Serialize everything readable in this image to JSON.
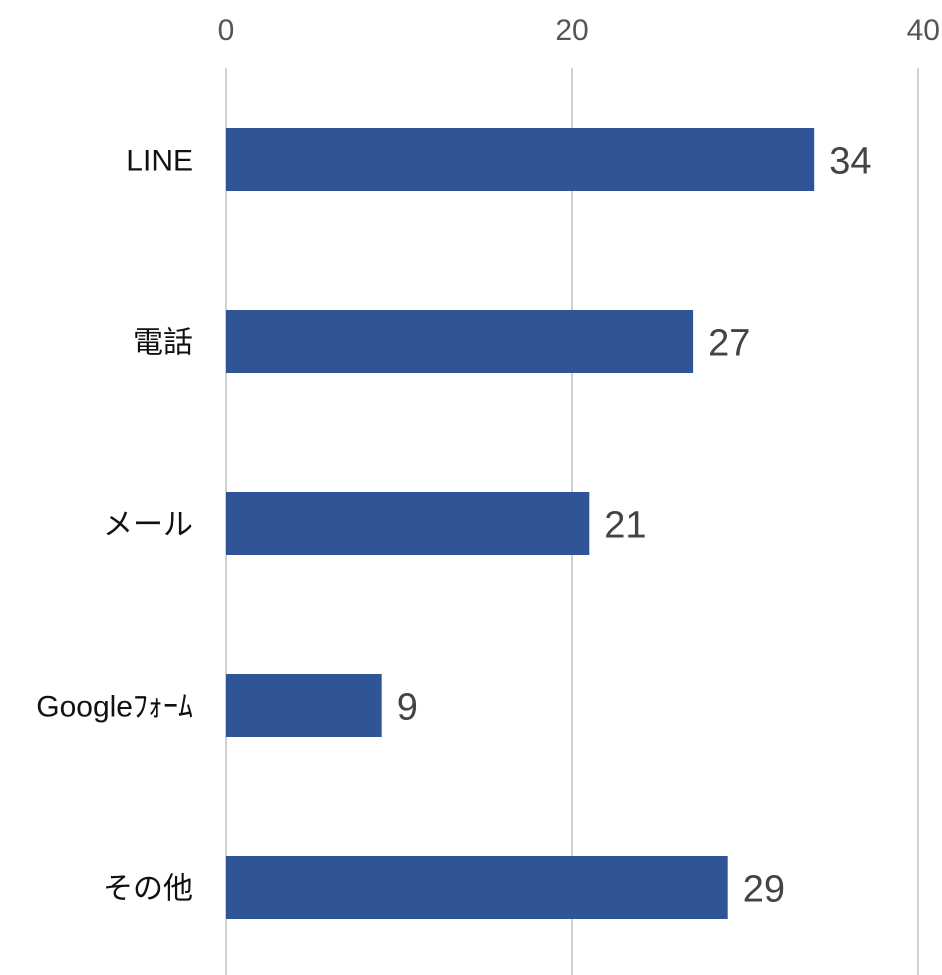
{
  "chart_data": {
    "type": "bar",
    "orientation": "horizontal",
    "categories": [
      "LINE",
      "電話",
      "メール",
      "Googleﾌｫｰﾑ",
      "その他"
    ],
    "values": [
      34,
      27,
      21,
      9,
      29
    ],
    "xlim": [
      0,
      40
    ],
    "x_ticks": [
      0,
      20,
      40
    ],
    "x_axis_position": "top",
    "grid": true,
    "data_labels": true,
    "title": "",
    "xlabel": "",
    "ylabel": ""
  },
  "colors": {
    "bar": "#2f5597",
    "grid": "#d0d0d0"
  }
}
